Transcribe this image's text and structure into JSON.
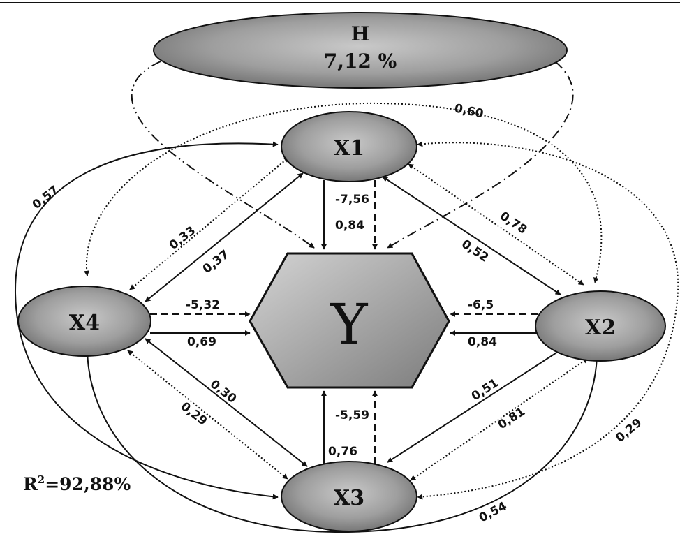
{
  "nodes": {
    "H": {
      "label": "H",
      "value": "7,12 %"
    },
    "X1": {
      "label": "X1"
    },
    "X2": {
      "label": "X2"
    },
    "X3": {
      "label": "X3"
    },
    "X4": {
      "label": "X4"
    },
    "Y": {
      "label": "Y"
    }
  },
  "r2": {
    "prefix": "R",
    "sup": "2",
    "value": "=92,88%"
  },
  "edges": {
    "h_to_y": {
      "from": "H",
      "to": "Y",
      "style": "dash-dot"
    },
    "x1_y_indirect": {
      "from": "X1",
      "to": "Y",
      "label": "-7,56",
      "style": "dashed"
    },
    "x1_y_direct": {
      "from": "X1",
      "to": "Y",
      "label": "0,84",
      "style": "solid"
    },
    "x2_y_indirect": {
      "from": "X2",
      "to": "Y",
      "label": "-6,5",
      "style": "dashed"
    },
    "x2_y_direct": {
      "from": "X2",
      "to": "Y",
      "label": "0,84",
      "style": "solid"
    },
    "x3_y_indirect": {
      "from": "X3",
      "to": "Y",
      "label": "-5,59",
      "style": "dashed"
    },
    "x3_y_direct": {
      "from": "X3",
      "to": "Y",
      "label": "0,76",
      "style": "solid"
    },
    "x4_y_indirect": {
      "from": "X4",
      "to": "Y",
      "label": "-5,32",
      "style": "dashed"
    },
    "x4_y_direct": {
      "from": "X4",
      "to": "Y",
      "label": "0,69",
      "style": "solid"
    },
    "x1_x4_solid": {
      "label": "0,37",
      "style": "solid"
    },
    "x1_x4_dotted": {
      "label": "0,33",
      "style": "dotted"
    },
    "x1_x2_solid": {
      "label": "0,52",
      "style": "solid"
    },
    "x1_x2_dotted": {
      "label": "0,78",
      "style": "dotted"
    },
    "x4_x3_solid": {
      "label": "0,30",
      "style": "solid"
    },
    "x4_x3_dotted": {
      "label": "0,29",
      "style": "dotted"
    },
    "x2_x3_solid": {
      "label": "0,51",
      "style": "solid"
    },
    "x2_x3_dotted": {
      "label": "0,81",
      "style": "dotted"
    },
    "x1_x3_outer_left": {
      "label": "0,57",
      "style": "solid"
    },
    "x2_x4_outer_dotted": {
      "label": "0,60",
      "style": "dotted"
    },
    "x1_x3_outer_right": {
      "label": "0,29",
      "style": "dotted"
    },
    "x4_x2_bottom": {
      "label": "0,54",
      "style": "solid"
    }
  }
}
